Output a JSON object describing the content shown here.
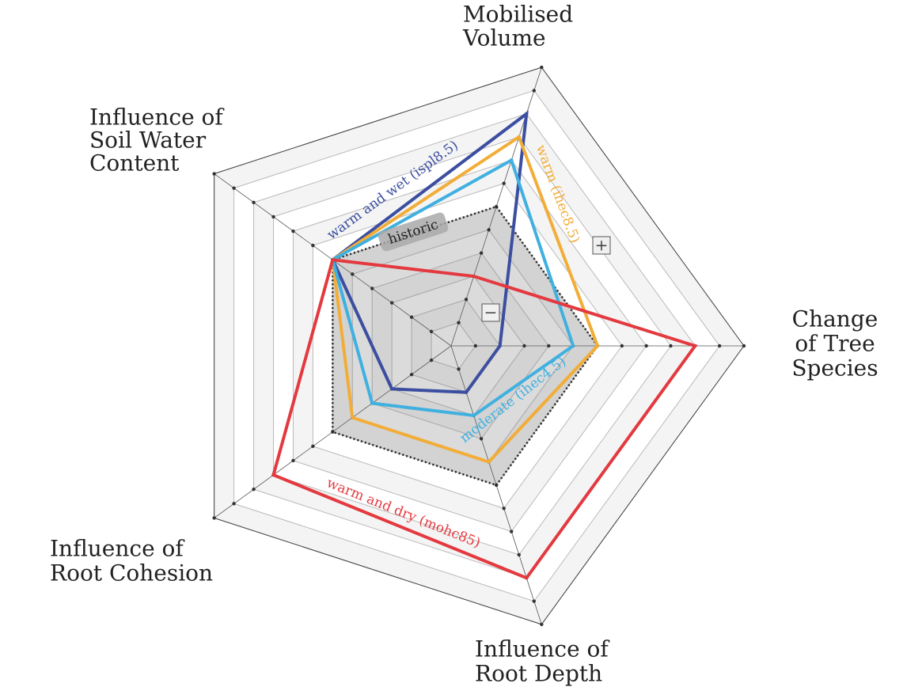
{
  "chart_data": {
    "type": "radar",
    "categories": [
      [
        "Change",
        "of Tree",
        "Species"
      ],
      [
        "Mobilised",
        "Volume"
      ],
      [
        "Influence of",
        "Soil Water",
        "Content"
      ],
      [
        "Influence of",
        "Root Cohesion"
      ],
      [
        "Influence of",
        "Root Depth"
      ]
    ],
    "rlim": [
      0,
      12
    ],
    "rticks": [
      1,
      2,
      3,
      4,
      5,
      6,
      7,
      8,
      9,
      10,
      11,
      12
    ],
    "grid": true,
    "series": [
      {
        "name": "historic",
        "color": "#222222",
        "values": [
          6,
          6,
          6,
          6,
          6
        ]
      },
      {
        "name": "warm and wet (ispl8.5)",
        "color": "#3b4ea0",
        "values": [
          2,
          10,
          6,
          3,
          2
        ]
      },
      {
        "name": "warm (ihec8.5)",
        "color": "#f2ad38",
        "values": [
          6,
          9,
          6,
          5,
          5
        ]
      },
      {
        "name": "moderate (ihec4.5)",
        "color": "#3fb0e0",
        "values": [
          5,
          8,
          6,
          4,
          3
        ]
      },
      {
        "name": "warm and dry (mohc85)",
        "color": "#e3393f",
        "values": [
          10,
          3,
          6,
          9,
          10
        ]
      }
    ],
    "annotations": [
      "+",
      "−"
    ]
  }
}
